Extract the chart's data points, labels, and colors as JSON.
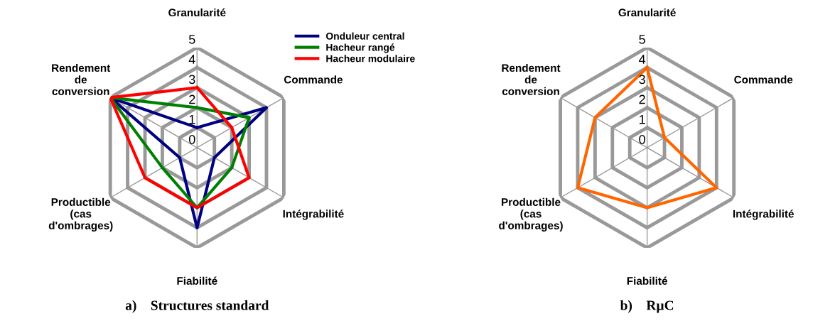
{
  "chart_data": [
    {
      "type": "radar",
      "categories": [
        "Granularité",
        "Commande",
        "Intégrabilité",
        "Fiabilité",
        "Productible\n(cas\nd'ombrages)",
        "Rendement\nde\nconversion"
      ],
      "ylim": [
        0,
        5
      ],
      "yticks": [
        0,
        1,
        2,
        3,
        4,
        5
      ],
      "grid": true,
      "legend": "top right",
      "marker": "none",
      "line_style": "solid",
      "series": [
        {
          "name": "Onduleur central",
          "color": "#000080",
          "values": [
            1,
            4,
            1,
            4,
            1,
            5
          ]
        },
        {
          "name": "Hacheur rangé",
          "color": "#008000",
          "values": [
            2,
            3,
            2,
            3,
            2,
            5
          ]
        },
        {
          "name": "Hacheur modulaire",
          "color": "#ff0000",
          "values": [
            3,
            2,
            3,
            3,
            3,
            5
          ]
        }
      ],
      "annotations": [
        "a)    Structures standard"
      ]
    },
    {
      "type": "radar",
      "categories": [
        "Granularité",
        "Commande",
        "Intégrabilité",
        "Fiabilité",
        "Productible\n(cas\nd'ombrages)",
        "Rendement\nde\nconversion"
      ],
      "ylim": [
        0,
        5
      ],
      "yticks": [
        0,
        1,
        2,
        3,
        4,
        5
      ],
      "grid": true,
      "marker": "none",
      "line_style": "solid",
      "series": [
        {
          "color": "#ff6600",
          "values": [
            4,
            1,
            4,
            3,
            4,
            3
          ]
        }
      ],
      "annotations": [
        "b)    RµC"
      ]
    }
  ]
}
